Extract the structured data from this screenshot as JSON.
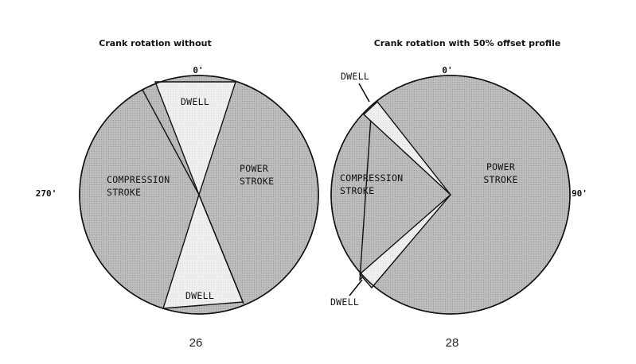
{
  "colors": {
    "stroke_fill": "#b9b9b9",
    "dwell_fill": "#ececec",
    "outline": "#111111"
  },
  "diagram_26": {
    "title": "Crank rotation without",
    "angle_top": "0'",
    "angle_left": "270'",
    "dwell_top": "DWELL",
    "dwell_bottom": "DWELL",
    "compression_line1": "COMPRESSION",
    "compression_line2": "STROKE",
    "power_line1": "POWER",
    "power_line2": "STROKE",
    "figure_number": "26"
  },
  "diagram_28": {
    "title": "Crank rotation with 50% offset profile",
    "angle_top": "0'",
    "angle_right": "90'",
    "dwell_top": "DWELL",
    "dwell_bottom": "DWELL",
    "compression_line1": "COMPRESSION",
    "compression_line2": "STROKE",
    "power_line1": "POWER",
    "power_line2": "STROKE",
    "figure_number": "28"
  }
}
